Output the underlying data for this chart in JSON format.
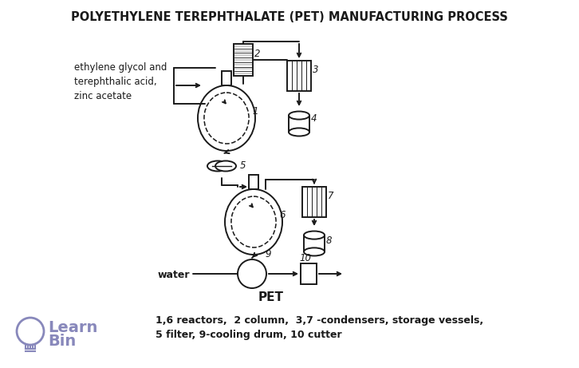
{
  "title": "POLYETHYLENE TEREPHTHALATE (PET) MANUFACTURING PROCESS",
  "title_fontsize": 10.5,
  "bg_color": "#ffffff",
  "line_color": "#1a1a1a",
  "label_input": "ethylene glycol and\nterephthalic acid,\nzinc acetate",
  "label_water": "water",
  "label_pet": "PET",
  "legend_text": "1,6 reactors,  2 column,  3,7 -condensers, storage vessels,\n5 filter, 9-cooling drum, 10 cutter",
  "logo_text_learn": "Learn",
  "logo_text_bin": "Bin",
  "logo_color": "#8888bb"
}
